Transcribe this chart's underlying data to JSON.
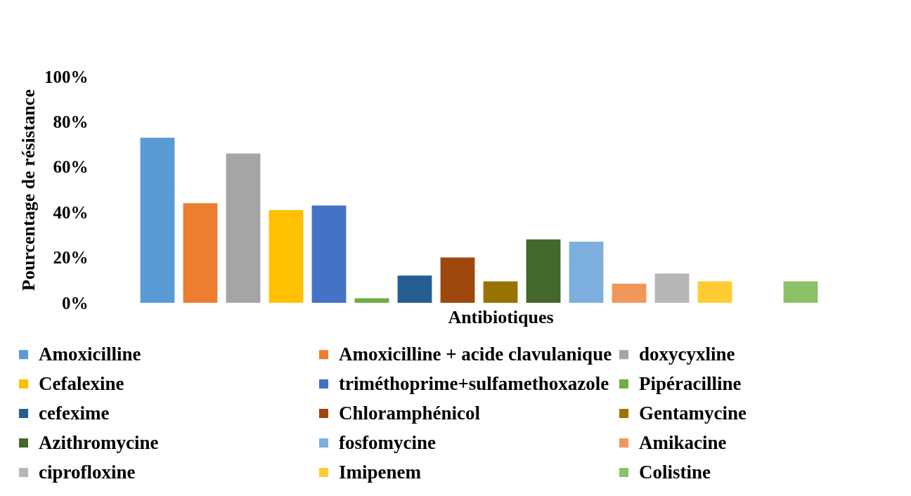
{
  "chart_data": {
    "type": "bar",
    "xlabel": "Antibiotiques",
    "ylabel": "Pourcentage de résistance",
    "categories": [
      null
    ],
    "series": [
      {
        "name": "Amoxicilline",
        "color": "#5b9bd5",
        "values": [
          73
        ]
      },
      {
        "name": "Amoxicilline + acide clavulanique",
        "color": "#ed7d31",
        "values": [
          44
        ]
      },
      {
        "name": "doxycyxline",
        "color": "#a5a5a5",
        "values": [
          66
        ]
      },
      {
        "name": "Cefalexine",
        "color": "#ffc000",
        "values": [
          41
        ]
      },
      {
        "name": "triméthoprime+sulfamethoxazole",
        "color": "#4472c4",
        "values": [
          43
        ]
      },
      {
        "name": "Pipéracilline",
        "color": "#70ad47",
        "values": [
          2
        ]
      },
      {
        "name": "cefexime",
        "color": "#255e91",
        "values": [
          12
        ]
      },
      {
        "name": "Chloramphénicol",
        "color": "#9e480e",
        "values": [
          20
        ]
      },
      {
        "name": "Gentamycine",
        "color": "#997300",
        "values": [
          9.5
        ]
      },
      {
        "name": "Azithromycine",
        "color": "#43682b",
        "values": [
          28
        ]
      },
      {
        "name": "fosfomycine",
        "color": "#7cafdd",
        "values": [
          27
        ]
      },
      {
        "name": "Amikacine",
        "color": "#f1975a",
        "values": [
          8.5
        ]
      },
      {
        "name": "ciprofloxine",
        "color": "#b7b7b7",
        "values": [
          13
        ]
      },
      {
        "name": "Imipenem",
        "color": "#ffcd33",
        "values": [
          9.5
        ]
      },
      {
        "values": [
          null
        ]
      },
      {
        "name": "Colistine",
        "color": "#8cc168",
        "values": [
          9.5
        ]
      },
      {
        "values": [
          null
        ]
      }
    ],
    "ylim": [
      0,
      100
    ],
    "yticks": [
      {
        "value": 0,
        "label": "0%"
      },
      {
        "value": 20,
        "label": "20%"
      },
      {
        "value": 40,
        "label": "40%"
      },
      {
        "value": 60,
        "label": "60%"
      },
      {
        "value": 80,
        "label": "80%"
      },
      {
        "value": 100,
        "label": "100%"
      }
    ],
    "grid": false,
    "legend": "bottom",
    "tick_labels": "y"
  }
}
